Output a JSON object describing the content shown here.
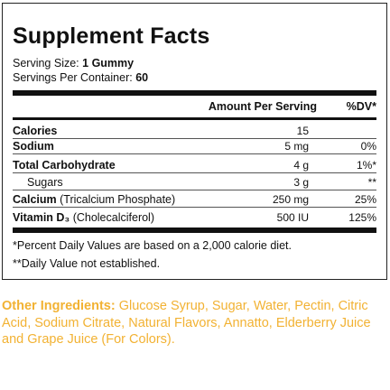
{
  "facts": {
    "title": "Supplement Facts",
    "serving_size_label": "Serving Size:",
    "serving_size_value": "1 Gummy",
    "servings_label": "Servings Per Container:",
    "servings_value": "60",
    "header_amount": "Amount Per Serving",
    "header_dv": "%DV*",
    "rows": [
      {
        "name": "Calories",
        "sub": "",
        "amount": "15",
        "dv": ""
      },
      {
        "name": "Sodium",
        "sub": "",
        "amount": "5 mg",
        "dv": "0%"
      },
      {
        "name": "Total Carbohydrate",
        "sub": "",
        "amount": "4 g",
        "dv": "1%*"
      },
      {
        "name": "Sugars",
        "sub": "",
        "amount": "3 g",
        "dv": "**"
      },
      {
        "name": "Calcium",
        "sub": "(Tricalcium Phosphate)",
        "amount": "250 mg",
        "dv": "25%"
      },
      {
        "name": "Vitamin D₃",
        "sub": "(Cholecalciferol)",
        "amount": "500 IU",
        "dv": "125%"
      }
    ],
    "footnote_1": "*Percent Daily Values are based on a 2,000 calorie diet.",
    "footnote_2": "**Daily Value not established."
  },
  "other_ingredients": {
    "label": "Other Ingredients:",
    "text": "Glucose Syrup, Sugar, Water, Pectin, Citric Acid, Sodium Citrate, Natural Flavors, Annatto, Elderberry Juice and Grape Juice (For Colors)."
  },
  "colors": {
    "border": "#222222",
    "text": "#111111",
    "other_ingredients": "#f2b233"
  }
}
